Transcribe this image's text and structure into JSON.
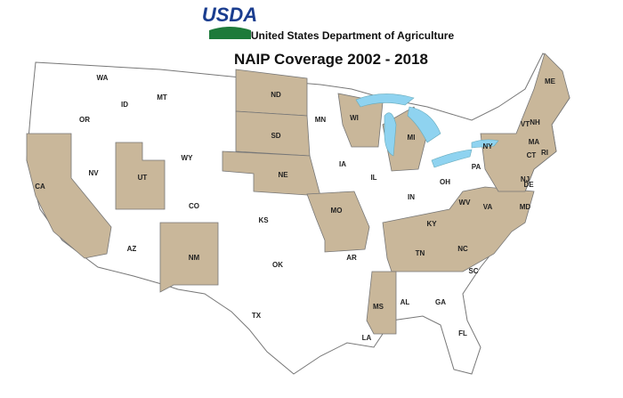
{
  "header": {
    "logo": "USDA",
    "agency_name": "United States Department of Agriculture"
  },
  "title": "NAIP Coverage 2002 - 2018",
  "states": [
    "WA",
    "OR",
    "CA",
    "NV",
    "ID",
    "MT",
    "WY",
    "UT",
    "CO",
    "AZ",
    "NM",
    "ND",
    "SD",
    "NE",
    "KS",
    "OK",
    "TX",
    "MN",
    "IA",
    "MO",
    "AR",
    "LA",
    "WI",
    "IL",
    "MI",
    "IN",
    "OH",
    "KY",
    "TN",
    "MS",
    "AL",
    "GA",
    "FL",
    "SC",
    "NC",
    "VA",
    "WV",
    "MD",
    "DE",
    "PA",
    "NJ",
    "NY",
    "CT",
    "RI",
    "MA",
    "VT",
    "NH",
    "ME"
  ]
}
